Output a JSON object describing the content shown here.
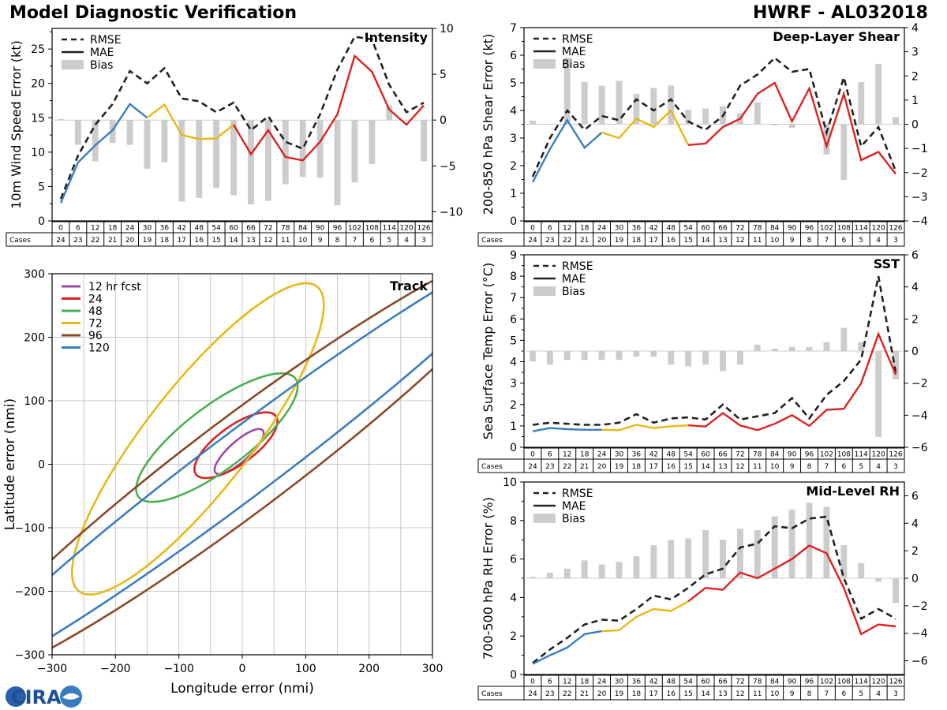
{
  "header": {
    "title": "Model Diagnostic Verification",
    "model": "HWRF - AL032018"
  },
  "leads": [
    0,
    6,
    12,
    18,
    24,
    30,
    36,
    42,
    48,
    54,
    60,
    66,
    72,
    78,
    84,
    90,
    96,
    102,
    108,
    114,
    120,
    126
  ],
  "cases": [
    24,
    23,
    22,
    21,
    20,
    19,
    18,
    17,
    16,
    15,
    14,
    13,
    12,
    11,
    10,
    9,
    8,
    7,
    6,
    5,
    4,
    3
  ],
  "cases_label": "Cases",
  "legend_labels": {
    "rmse": "RMSE",
    "mae": "MAE",
    "bias": "Bias"
  },
  "colors": {
    "early": "#3a7dbf",
    "mid": "#e8b817",
    "late": "#dd2222",
    "bias": "#cccccc",
    "rmse": "#222222"
  },
  "logo": {
    "text": "CIRA"
  },
  "chart_data": [
    {
      "id": "intensity",
      "type": "line",
      "title": "Intensity",
      "ylabel": "10m Wind Speed Error (kt)",
      "ylim": [
        0,
        28
      ],
      "yticks": [
        0,
        5,
        10,
        15,
        20,
        25
      ],
      "y2lim": [
        -11,
        10
      ],
      "y2ticks": [
        -10,
        -5,
        0,
        5,
        10
      ],
      "segments": [
        6,
        11
      ],
      "rmse": [
        3.2,
        9.5,
        14.0,
        17.0,
        21.8,
        20.0,
        22.2,
        17.8,
        17.4,
        15.8,
        17.2,
        13.2,
        15.2,
        11.5,
        10.5,
        15.5,
        22.0,
        26.8,
        26.4,
        19.8,
        15.8,
        17.2
      ],
      "mae": [
        2.6,
        8.5,
        11.0,
        13.2,
        17.0,
        15.0,
        16.9,
        12.5,
        11.9,
        12.0,
        14.0,
        9.7,
        13.2,
        9.3,
        8.8,
        11.5,
        15.5,
        24.0,
        21.7,
        16.2,
        14.0,
        16.8
      ],
      "bias": [
        0.1,
        -2.7,
        -4.5,
        -2.5,
        -2.7,
        -5.3,
        -4.6,
        -8.9,
        -8.5,
        -7.4,
        -8.2,
        -9.2,
        -8.8,
        -7.0,
        -6.2,
        -6.3,
        -9.3,
        -6.8,
        -4.8,
        1.6,
        0.0,
        -4.5
      ]
    },
    {
      "id": "shear",
      "type": "line",
      "title": "Deep-Layer Shear",
      "ylabel": "200-850 hPa Shear Error (kt)",
      "ylim": [
        0,
        7
      ],
      "yticks": [
        0,
        1,
        2,
        3,
        4,
        5,
        6,
        7
      ],
      "y2lim": [
        -4,
        4
      ],
      "y2ticks": [
        -4,
        -3,
        -2,
        -1,
        0,
        1,
        2,
        3,
        4
      ],
      "segments": [
        5,
        10
      ],
      "rmse": [
        1.6,
        3.0,
        4.0,
        3.3,
        3.8,
        3.65,
        4.4,
        4.0,
        4.4,
        3.6,
        3.3,
        3.8,
        4.9,
        5.3,
        5.9,
        5.4,
        5.5,
        3.2,
        5.2,
        2.7,
        3.4,
        1.8
      ],
      "mae": [
        1.4,
        2.6,
        3.65,
        2.65,
        3.2,
        3.0,
        3.7,
        3.4,
        4.0,
        2.75,
        2.8,
        3.4,
        3.7,
        4.6,
        5.0,
        3.6,
        4.8,
        2.7,
        4.6,
        2.2,
        2.5,
        1.7
      ],
      "bias": [
        0.15,
        0.0,
        2.75,
        1.75,
        1.6,
        1.8,
        1.25,
        1.5,
        1.6,
        0.6,
        0.65,
        0.75,
        0.45,
        0.9,
        -0.05,
        -0.15,
        0.0,
        -1.25,
        -2.3,
        1.75,
        2.5,
        0.3
      ]
    },
    {
      "id": "sst",
      "type": "line",
      "title": "SST",
      "ylabel": "Sea Surface Temp Error (°C)",
      "ylim": [
        0,
        9
      ],
      "yticks": [
        0,
        1,
        2,
        3,
        4,
        5,
        6,
        7,
        8,
        9
      ],
      "y2lim": [
        -6,
        6
      ],
      "y2ticks": [
        -6,
        -4,
        -2,
        0,
        2,
        4,
        6
      ],
      "segments": [
        5,
        10
      ],
      "rmse": [
        1.05,
        1.15,
        1.1,
        1.05,
        1.05,
        1.15,
        1.55,
        1.15,
        1.35,
        1.4,
        1.3,
        2.0,
        1.3,
        1.45,
        1.6,
        2.3,
        1.35,
        2.45,
        3.1,
        4.1,
        8.0,
        3.5
      ],
      "mae": [
        0.75,
        0.9,
        0.85,
        0.82,
        0.82,
        0.8,
        1.05,
        0.9,
        0.98,
        1.03,
        0.97,
        1.6,
        1.02,
        0.8,
        1.1,
        1.5,
        1.0,
        1.75,
        1.8,
        3.0,
        5.3,
        3.4
      ],
      "bias": [
        -0.65,
        -0.85,
        -0.55,
        -0.55,
        -0.55,
        -0.55,
        -0.35,
        -0.35,
        -0.85,
        -0.95,
        -0.85,
        -1.25,
        -0.85,
        0.4,
        0.15,
        0.25,
        0.25,
        0.55,
        1.45,
        0.55,
        -5.35,
        -1.75
      ]
    },
    {
      "id": "rh",
      "type": "line",
      "title": "Mid-Level RH",
      "ylabel": "700-500 hPa RH Error (%)",
      "ylim": [
        0,
        10
      ],
      "yticks": [
        0,
        2,
        4,
        6,
        8,
        10
      ],
      "y2lim": [
        -7,
        7
      ],
      "y2ticks": [
        -6,
        -4,
        -2,
        0,
        2,
        4,
        6
      ],
      "segments": [
        5,
        10
      ],
      "rmse": [
        0.6,
        1.3,
        1.9,
        2.6,
        2.85,
        2.8,
        3.4,
        4.1,
        3.9,
        4.5,
        5.2,
        5.5,
        6.6,
        6.8,
        7.7,
        7.6,
        8.1,
        8.2,
        5.0,
        2.9,
        3.4,
        2.9
      ],
      "mae": [
        0.55,
        1.0,
        1.4,
        2.1,
        2.25,
        2.3,
        3.0,
        3.4,
        3.3,
        3.8,
        4.5,
        4.4,
        5.3,
        5.0,
        5.5,
        6.0,
        6.7,
        6.3,
        4.5,
        2.1,
        2.6,
        2.5
      ],
      "bias": [
        0.1,
        0.4,
        0.7,
        1.3,
        1.0,
        1.2,
        1.6,
        2.4,
        2.8,
        2.9,
        3.5,
        2.8,
        3.6,
        3.5,
        4.5,
        5.0,
        5.5,
        5.2,
        2.4,
        1.1,
        -0.25,
        -1.8
      ]
    },
    {
      "id": "track",
      "type": "scatter",
      "title": "Track",
      "xlabel": "Longitude error (nmi)",
      "ylabel": "Latitude error (nmi)",
      "xlim": [
        -300,
        300
      ],
      "ylim": [
        -300,
        300
      ],
      "xticks": [
        -300,
        -200,
        -100,
        0,
        100,
        200,
        300
      ],
      "yticks": [
        -300,
        -200,
        -100,
        0,
        100,
        200,
        300
      ],
      "ellipses": [
        {
          "label": "12 hr fcst",
          "color": "#9b4aa3",
          "cx": -5,
          "cy": 20,
          "a": 50,
          "b": 16,
          "angle": 42
        },
        {
          "label": "24",
          "color": "#dd2222",
          "cx": -10,
          "cy": 30,
          "a": 78,
          "b": 30,
          "angle": 36
        },
        {
          "label": "48",
          "color": "#4caf50",
          "cx": -40,
          "cy": 42,
          "a": 155,
          "b": 50,
          "angle": 37
        },
        {
          "label": "72",
          "color": "#e8b817",
          "cx": -70,
          "cy": 40,
          "a": 305,
          "b": 82,
          "angle": 52
        },
        {
          "label": "96",
          "color": "#8b4a26",
          "cx": 0,
          "cy": 0,
          "a": 560,
          "b": 75,
          "angle": 37
        },
        {
          "label": "120",
          "color": "#3a7dbf",
          "cx": 0,
          "cy": 0,
          "a": 560,
          "b": 52,
          "angle": 37
        }
      ]
    }
  ]
}
